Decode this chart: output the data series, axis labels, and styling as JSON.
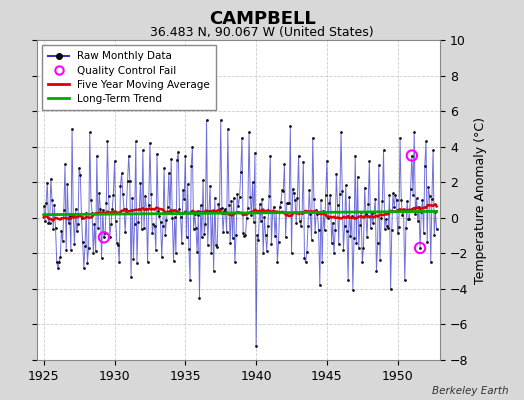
{
  "title": "CAMPBELL",
  "subtitle": "36.483 N, 90.067 W (United States)",
  "ylabel": "Temperature Anomaly (°C)",
  "credit": "Berkeley Earth",
  "xlim": [
    1924.5,
    1953.0
  ],
  "ylim": [
    -8,
    10
  ],
  "yticks": [
    -8,
    -6,
    -4,
    -2,
    0,
    2,
    4,
    6,
    8,
    10
  ],
  "xticks": [
    1925,
    1930,
    1935,
    1940,
    1945,
    1950
  ],
  "fig_bg_color": "#d8d8d8",
  "plot_bg_color": "#ffffff",
  "raw_color": "#3333cc",
  "raw_lw": 0.7,
  "raw_alpha": 0.7,
  "dot_color": "#111111",
  "dot_size": 4,
  "ma_color": "#dd0000",
  "ma_lw": 1.8,
  "trend_color": "#00aa00",
  "trend_lw": 2.0,
  "qc_color": "#ff00ff",
  "qc_fail_times": [
    1929.25,
    1951.0,
    1951.58
  ],
  "qc_fail_values": [
    -1.1,
    3.5,
    -1.7
  ],
  "seed": 42
}
